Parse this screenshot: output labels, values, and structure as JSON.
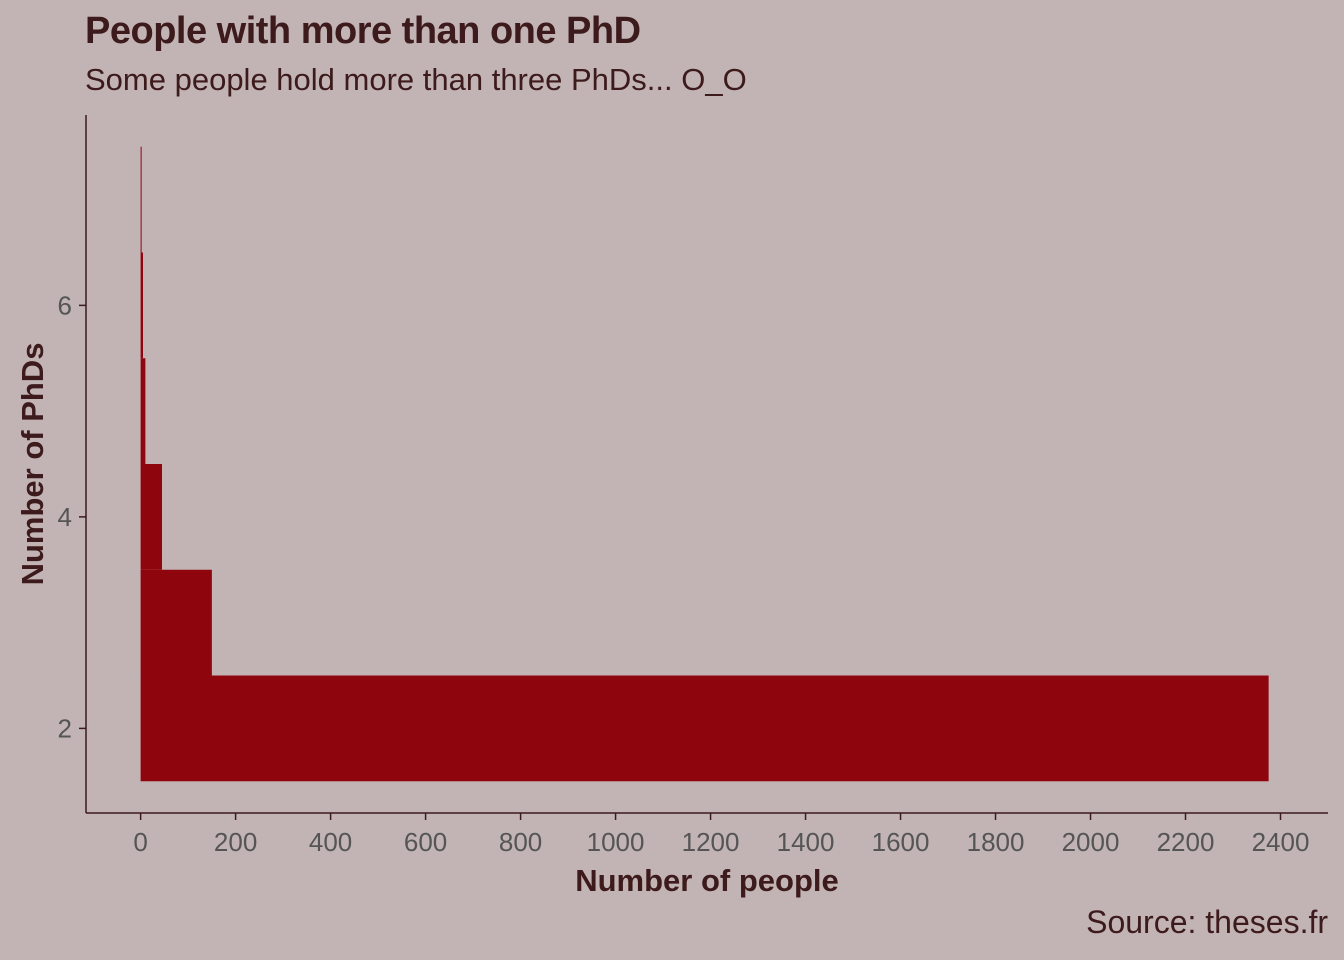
{
  "title": "People with more than one PhD",
  "subtitle": "Some people hold more than three PhDs... O_O",
  "caption": "Source: theses.fr",
  "colors": {
    "background": "#c2b4b4",
    "bar": "#8f050e",
    "axis": "#3d1a1c",
    "tick_text": "#555555"
  },
  "chart_data": {
    "type": "bar",
    "orientation": "horizontal",
    "xlabel": "Number of people",
    "ylabel": "Number of PhDs",
    "xlim": [
      -115,
      2500
    ],
    "ylim": [
      1.2,
      7.8
    ],
    "x_ticks": [
      0,
      200,
      400,
      600,
      800,
      1000,
      1200,
      1400,
      1600,
      1800,
      2000,
      2200,
      2400
    ],
    "y_ticks": [
      2,
      4,
      6
    ],
    "grid": false,
    "categories": [
      2,
      3,
      4,
      5,
      6,
      7
    ],
    "values": [
      2375,
      150,
      45,
      10,
      5,
      2
    ]
  }
}
